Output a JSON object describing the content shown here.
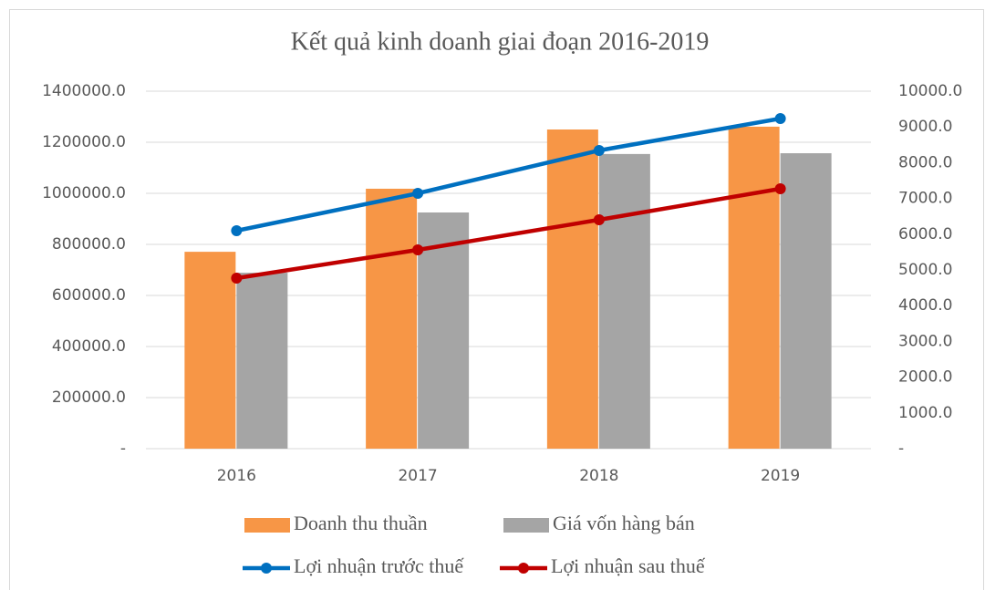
{
  "chart_data": {
    "type": "bar",
    "title": "Kết quả kinh doanh giai đoạn 2016-2019",
    "categories": [
      "2016",
      "2017",
      "2018",
      "2019"
    ],
    "series": [
      {
        "name": "Doanh thu thuần",
        "type": "bar",
        "color": "#f79646",
        "values": [
          771000,
          1018000,
          1250000,
          1261000
        ]
      },
      {
        "name": "Giá vốn hàng bán",
        "type": "bar",
        "color": "#a5a5a5",
        "values": [
          689000,
          925000,
          1154000,
          1157000
        ]
      },
      {
        "name": "Lợi nhuận trước thuế",
        "type": "line",
        "axis": "y2",
        "color": "#0070c0",
        "values": [
          6097,
          7143,
          8342,
          9235
        ]
      },
      {
        "name": "Lợi nhuận sau thuế",
        "type": "line",
        "axis": "y2",
        "color": "#c00000",
        "values": [
          4770,
          5561,
          6403,
          7270
        ]
      }
    ],
    "ylim": [
      0,
      1400000
    ],
    "yticks": [
      {
        "value": 0,
        "label": "-"
      },
      {
        "value": 200000,
        "label": "200000.0"
      },
      {
        "value": 400000,
        "label": "400000.0"
      },
      {
        "value": 600000,
        "label": "600000.0"
      },
      {
        "value": 800000,
        "label": "800000.0"
      },
      {
        "value": 1000000,
        "label": "1000000.0"
      },
      {
        "value": 1200000,
        "label": "1200000.0"
      },
      {
        "value": 1400000,
        "label": "1400000.0"
      }
    ],
    "y2lim": [
      0,
      10000
    ],
    "y2ticks": [
      {
        "value": 0,
        "label": "-"
      },
      {
        "value": 1000,
        "label": "1000.0"
      },
      {
        "value": 2000,
        "label": "2000.0"
      },
      {
        "value": 3000,
        "label": "3000.0"
      },
      {
        "value": 4000,
        "label": "4000.0"
      },
      {
        "value": 5000,
        "label": "5000.0"
      },
      {
        "value": 6000,
        "label": "6000.0"
      },
      {
        "value": 7000,
        "label": "7000.0"
      },
      {
        "value": 8000,
        "label": "8000.0"
      },
      {
        "value": 9000,
        "label": "9000.0"
      },
      {
        "value": 10000,
        "label": "10000.0"
      }
    ],
    "grid": true
  }
}
